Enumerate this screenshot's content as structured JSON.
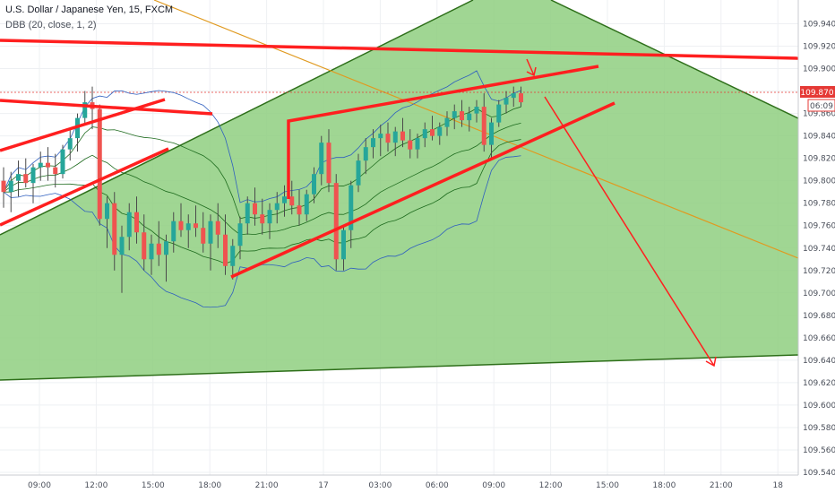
{
  "header": {
    "title": "U.S. Dollar / Japanese Yen, 15, FXCM",
    "indicator": "DBB (20, close, 1, 2)"
  },
  "chart_data": {
    "type": "candlestick",
    "symbol": "USDJPY",
    "timeframe": "15",
    "source": "FXCM",
    "ylim": [
      109.54,
      109.95
    ],
    "y_ticks": [
      109.94,
      109.92,
      109.9,
      109.88,
      109.86,
      109.84,
      109.82,
      109.8,
      109.78,
      109.76,
      109.74,
      109.72,
      109.7,
      109.68,
      109.66,
      109.64,
      109.62,
      109.6,
      109.58,
      109.56,
      109.54
    ],
    "x_ticks": [
      "09:00",
      "12:00",
      "15:00",
      "18:00",
      "21:00",
      "17",
      "03:00",
      "06:00",
      "09:00",
      "12:00",
      "15:00",
      "18:00",
      "21:00",
      "18"
    ],
    "last_price": "109.870",
    "countdown": "06:09",
    "colors": {
      "up": "#26a69a",
      "down": "#ef5350",
      "wick": "#4a4a4a",
      "fill": "#8fcf80",
      "fill_border": "#2e6f1a",
      "annotation": "#ff1f1f",
      "bands": "#1e6b1e",
      "outer_band": "#2f5fbf",
      "trend": "#e09a20",
      "price_label": "#e53935"
    },
    "candles": [
      [
        109.8,
        109.812,
        109.776,
        109.79
      ],
      [
        109.79,
        109.808,
        109.772,
        109.8
      ],
      [
        109.8,
        109.818,
        109.786,
        109.806
      ],
      [
        109.806,
        109.82,
        109.794,
        109.798
      ],
      [
        109.798,
        109.815,
        109.78,
        109.812
      ],
      [
        109.812,
        109.826,
        109.8,
        109.816
      ],
      [
        109.816,
        109.83,
        109.8,
        109.812
      ],
      [
        109.812,
        109.824,
        109.794,
        109.806
      ],
      [
        109.806,
        109.832,
        109.802,
        109.828
      ],
      [
        109.828,
        109.846,
        109.818,
        109.838
      ],
      [
        109.838,
        109.86,
        109.826,
        109.856
      ],
      [
        109.856,
        109.88,
        109.85,
        109.87
      ],
      [
        109.87,
        109.884,
        109.846,
        109.864
      ],
      [
        109.864,
        109.868,
        109.76,
        109.766
      ],
      [
        109.766,
        109.786,
        109.74,
        109.78
      ],
      [
        109.78,
        109.79,
        109.72,
        109.734
      ],
      [
        109.734,
        109.76,
        109.7,
        109.75
      ],
      [
        109.75,
        109.78,
        109.738,
        109.772
      ],
      [
        109.772,
        109.786,
        109.744,
        109.754
      ],
      [
        109.754,
        109.77,
        109.72,
        109.73
      ],
      [
        109.73,
        109.752,
        109.716,
        109.744
      ],
      [
        109.744,
        109.764,
        109.724,
        109.734
      ],
      [
        109.734,
        109.752,
        109.71,
        109.746
      ],
      [
        109.746,
        109.772,
        109.736,
        109.764
      ],
      [
        109.764,
        109.78,
        109.75,
        109.756
      ],
      [
        109.756,
        109.77,
        109.74,
        109.762
      ],
      [
        109.762,
        109.778,
        109.75,
        109.758
      ],
      [
        109.758,
        109.772,
        109.736,
        109.744
      ],
      [
        109.744,
        109.77,
        109.72,
        109.764
      ],
      [
        109.764,
        109.78,
        109.74,
        109.752
      ],
      [
        109.752,
        109.77,
        109.716,
        109.724
      ],
      [
        109.724,
        109.748,
        109.712,
        109.742
      ],
      [
        109.742,
        109.768,
        109.73,
        109.762
      ],
      [
        109.762,
        109.786,
        109.752,
        109.78
      ],
      [
        109.78,
        109.794,
        109.76,
        109.77
      ],
      [
        109.77,
        109.784,
        109.752,
        109.762
      ],
      [
        109.762,
        109.78,
        109.748,
        109.774
      ],
      [
        109.774,
        109.79,
        109.762,
        109.78
      ],
      [
        109.78,
        109.796,
        109.768,
        109.786
      ],
      [
        109.786,
        109.8,
        109.77,
        109.778
      ],
      [
        109.778,
        109.792,
        109.76,
        109.77
      ],
      [
        109.77,
        109.792,
        109.764,
        109.788
      ],
      [
        109.788,
        109.812,
        109.78,
        109.806
      ],
      [
        109.806,
        109.84,
        109.796,
        109.834
      ],
      [
        109.834,
        109.846,
        109.79,
        109.798
      ],
      [
        109.798,
        109.806,
        109.72,
        109.73
      ],
      [
        109.73,
        109.76,
        109.72,
        109.756
      ],
      [
        109.756,
        109.8,
        109.74,
        109.796
      ],
      [
        109.796,
        109.824,
        109.79,
        109.818
      ],
      [
        109.818,
        109.838,
        109.806,
        109.83
      ],
      [
        109.83,
        109.846,
        109.82,
        109.838
      ],
      [
        109.838,
        109.85,
        109.822,
        109.842
      ],
      [
        109.842,
        109.852,
        109.826,
        109.834
      ],
      [
        109.834,
        109.848,
        109.822,
        109.844
      ],
      [
        109.844,
        109.856,
        109.83,
        109.836
      ],
      [
        109.836,
        109.846,
        109.82,
        109.828
      ],
      [
        109.828,
        109.842,
        109.82,
        109.838
      ],
      [
        109.838,
        109.852,
        109.83,
        109.846
      ],
      [
        109.846,
        109.858,
        109.836,
        109.84
      ],
      [
        109.84,
        109.852,
        109.832,
        109.848
      ],
      [
        109.848,
        109.862,
        109.84,
        109.856
      ],
      [
        109.856,
        109.868,
        109.846,
        109.862
      ],
      [
        109.862,
        109.872,
        109.848,
        109.854
      ],
      [
        109.854,
        109.866,
        109.844,
        109.86
      ],
      [
        109.86,
        109.872,
        109.852,
        109.866
      ],
      [
        109.866,
        109.878,
        109.826,
        109.832
      ],
      [
        109.832,
        109.856,
        109.82,
        109.852
      ],
      [
        109.852,
        109.872,
        109.848,
        109.868
      ],
      [
        109.868,
        109.88,
        109.86,
        109.874
      ],
      [
        109.874,
        109.884,
        109.866,
        109.878
      ],
      [
        109.878,
        109.884,
        109.866,
        109.87
      ]
    ]
  }
}
